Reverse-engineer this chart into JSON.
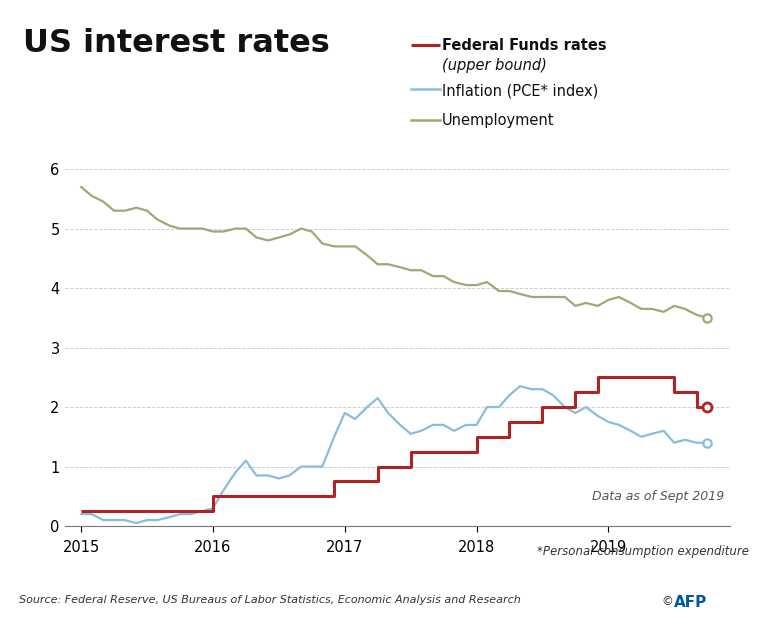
{
  "title": "US interest rates",
  "legend": {
    "fed_label_line1": "Federal Funds rates",
    "fed_label_line2": "(upper bound)",
    "inflation_label": "Inflation (PCE* index)",
    "unemployment_label": "Unemployment"
  },
  "annotation": "Data as of Sept 2019",
  "footnote": "*Personal consumption expenditure",
  "source": "Source: Federal Reserve, US Bureaus of Labor Statistics, Economic Analysis and Research",
  "fed_color": "#b22222",
  "inflation_color": "#87bedc",
  "unemployment_color": "#9aaa78",
  "background_color": "#ffffff",
  "title_bar_color": "#111111",
  "ylim": [
    0,
    6.3
  ],
  "yticks": [
    0,
    1,
    2,
    3,
    4,
    5,
    6
  ],
  "xlim_left": 2014.88,
  "xlim_right": 2019.92,
  "fed_funds": {
    "x": [
      2015.0,
      2015.08,
      2015.25,
      2015.5,
      2015.75,
      2015.92,
      2016.0,
      2016.25,
      2016.5,
      2016.75,
      2016.83,
      2016.92,
      2017.0,
      2017.25,
      2017.42,
      2017.5,
      2017.75,
      2018.0,
      2018.08,
      2018.25,
      2018.5,
      2018.58,
      2018.75,
      2018.83,
      2018.92,
      2019.0,
      2019.25,
      2019.42,
      2019.5,
      2019.67,
      2019.75
    ],
    "y": [
      0.25,
      0.25,
      0.25,
      0.25,
      0.25,
      0.25,
      0.5,
      0.5,
      0.5,
      0.5,
      0.5,
      0.75,
      0.75,
      1.0,
      1.0,
      1.25,
      1.25,
      1.5,
      1.5,
      1.75,
      2.0,
      2.0,
      2.25,
      2.25,
      2.5,
      2.5,
      2.5,
      2.5,
      2.25,
      2.0,
      2.0
    ]
  },
  "inflation": {
    "x": [
      2015.0,
      2015.08,
      2015.17,
      2015.25,
      2015.33,
      2015.42,
      2015.5,
      2015.58,
      2015.67,
      2015.75,
      2015.83,
      2015.92,
      2016.0,
      2016.08,
      2016.17,
      2016.25,
      2016.33,
      2016.42,
      2016.5,
      2016.58,
      2016.67,
      2016.75,
      2016.83,
      2016.92,
      2017.0,
      2017.08,
      2017.17,
      2017.25,
      2017.33,
      2017.42,
      2017.5,
      2017.58,
      2017.67,
      2017.75,
      2017.83,
      2017.92,
      2018.0,
      2018.08,
      2018.17,
      2018.25,
      2018.33,
      2018.42,
      2018.5,
      2018.58,
      2018.67,
      2018.75,
      2018.83,
      2018.92,
      2019.0,
      2019.08,
      2019.17,
      2019.25,
      2019.33,
      2019.42,
      2019.5,
      2019.58,
      2019.67,
      2019.75
    ],
    "y": [
      0.2,
      0.2,
      0.1,
      0.1,
      0.1,
      0.05,
      0.1,
      0.1,
      0.15,
      0.2,
      0.2,
      0.25,
      0.3,
      0.6,
      0.9,
      1.1,
      0.85,
      0.85,
      0.8,
      0.85,
      1.0,
      1.0,
      1.0,
      1.5,
      1.9,
      1.8,
      2.0,
      2.15,
      1.9,
      1.7,
      1.55,
      1.6,
      1.7,
      1.7,
      1.6,
      1.7,
      1.7,
      2.0,
      2.0,
      2.2,
      2.35,
      2.3,
      2.3,
      2.2,
      2.0,
      1.9,
      2.0,
      1.85,
      1.75,
      1.7,
      1.6,
      1.5,
      1.55,
      1.6,
      1.4,
      1.45,
      1.4,
      1.4
    ]
  },
  "unemployment": {
    "x": [
      2015.0,
      2015.08,
      2015.17,
      2015.25,
      2015.33,
      2015.42,
      2015.5,
      2015.58,
      2015.67,
      2015.75,
      2015.83,
      2015.92,
      2016.0,
      2016.08,
      2016.17,
      2016.25,
      2016.33,
      2016.42,
      2016.5,
      2016.58,
      2016.67,
      2016.75,
      2016.83,
      2016.92,
      2017.0,
      2017.08,
      2017.17,
      2017.25,
      2017.33,
      2017.42,
      2017.5,
      2017.58,
      2017.67,
      2017.75,
      2017.83,
      2017.92,
      2018.0,
      2018.08,
      2018.17,
      2018.25,
      2018.33,
      2018.42,
      2018.5,
      2018.58,
      2018.67,
      2018.75,
      2018.83,
      2018.92,
      2019.0,
      2019.08,
      2019.17,
      2019.25,
      2019.33,
      2019.42,
      2019.5,
      2019.58,
      2019.67,
      2019.75
    ],
    "y": [
      5.7,
      5.55,
      5.45,
      5.3,
      5.3,
      5.35,
      5.3,
      5.15,
      5.05,
      5.0,
      5.0,
      5.0,
      4.95,
      4.95,
      5.0,
      5.0,
      4.85,
      4.8,
      4.85,
      4.9,
      5.0,
      4.95,
      4.75,
      4.7,
      4.7,
      4.7,
      4.55,
      4.4,
      4.4,
      4.35,
      4.3,
      4.3,
      4.2,
      4.2,
      4.1,
      4.05,
      4.05,
      4.1,
      3.95,
      3.95,
      3.9,
      3.85,
      3.85,
      3.85,
      3.85,
      3.7,
      3.75,
      3.7,
      3.8,
      3.85,
      3.75,
      3.65,
      3.65,
      3.6,
      3.7,
      3.65,
      3.55,
      3.5
    ]
  }
}
